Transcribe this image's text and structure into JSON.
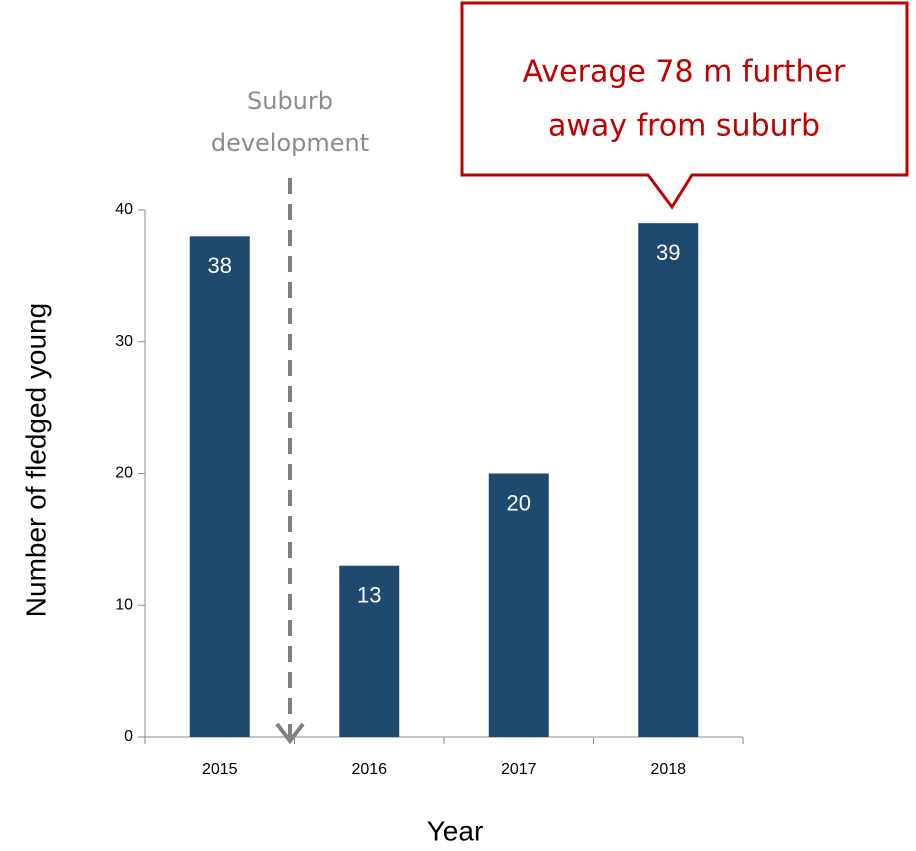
{
  "chart_data": {
    "type": "bar",
    "categories": [
      "2015",
      "2016",
      "2017",
      "2018"
    ],
    "values": [
      38,
      13,
      20,
      39
    ],
    "color": "#1f4a70",
    "ylim": [
      0,
      40
    ],
    "yticks": [
      0,
      10,
      20,
      30,
      40
    ],
    "xlabel": "Year",
    "ylabel": "Number of fledged young",
    "annotations": [
      {
        "lines": [
          "Suburb",
          "development"
        ],
        "color": "#8c8c8c"
      },
      {
        "lines": [
          "Average 78 m further",
          "away from suburb"
        ],
        "color": "#c00000"
      }
    ]
  }
}
